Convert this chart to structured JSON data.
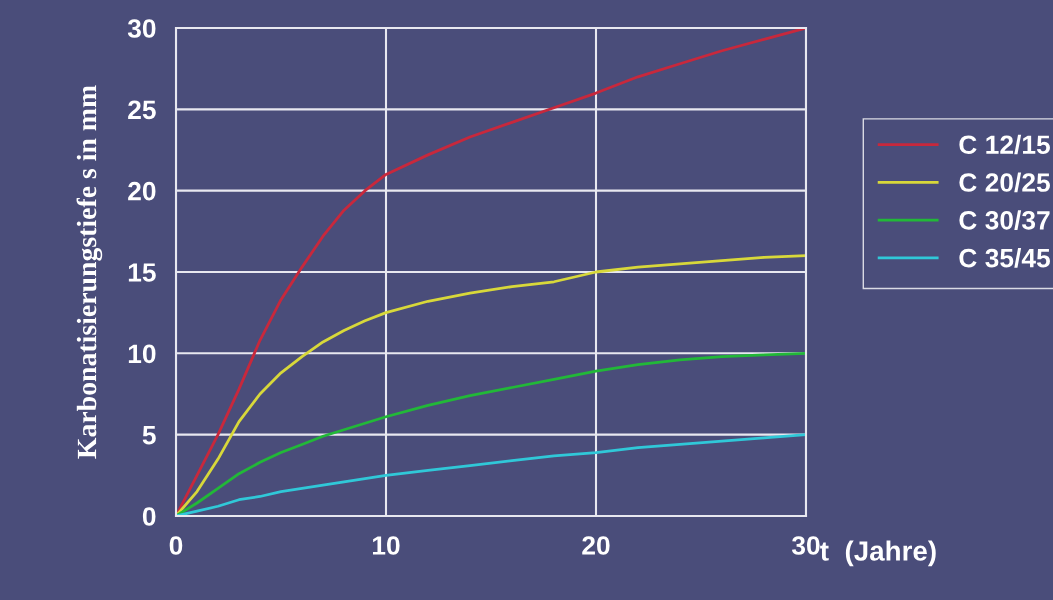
{
  "chart_data": {
    "type": "line",
    "xlabel": "t  (Jahre)",
    "ylabel": "Karbonatisierungstiefe s in mm",
    "x": [
      0,
      1,
      2,
      3,
      4,
      5,
      6,
      7,
      8,
      9,
      10,
      12,
      14,
      16,
      18,
      20,
      22,
      24,
      26,
      28,
      30
    ],
    "series": [
      {
        "name": "C 12/15",
        "color": "#c8283c",
        "values": [
          0,
          2.5,
          5,
          7.8,
          10.8,
          13.3,
          15.3,
          17.2,
          18.8,
          20,
          21,
          22.2,
          23.3,
          24.2,
          25.1,
          26,
          27,
          27.8,
          28.6,
          29.3,
          30
        ]
      },
      {
        "name": "C 20/25",
        "color": "#d8d83a",
        "values": [
          0,
          1.5,
          3.5,
          5.8,
          7.5,
          8.8,
          9.8,
          10.7,
          11.4,
          12,
          12.5,
          13.2,
          13.7,
          14.1,
          14.4,
          15,
          15.3,
          15.5,
          15.7,
          15.9,
          16
        ]
      },
      {
        "name": "C 30/37",
        "color": "#22b838",
        "values": [
          0,
          0.8,
          1.7,
          2.6,
          3.3,
          3.9,
          4.4,
          4.9,
          5.3,
          5.7,
          6.1,
          6.8,
          7.4,
          7.9,
          8.4,
          8.9,
          9.3,
          9.6,
          9.8,
          9.9,
          10
        ]
      },
      {
        "name": "C 35/45",
        "color": "#30c8d8",
        "values": [
          0,
          0.3,
          0.6,
          1.0,
          1.2,
          1.5,
          1.7,
          1.9,
          2.1,
          2.3,
          2.5,
          2.8,
          3.1,
          3.4,
          3.7,
          3.9,
          4.2,
          4.4,
          4.6,
          4.8,
          5
        ]
      }
    ],
    "xlim": [
      0,
      30
    ],
    "xticks": [
      0,
      10,
      20,
      30
    ],
    "ylim": [
      0,
      30
    ],
    "yticks": [
      0,
      5,
      10,
      15,
      20,
      25,
      30
    ],
    "grid": true,
    "legend": "right",
    "marker": "none",
    "line_style": "solid"
  }
}
